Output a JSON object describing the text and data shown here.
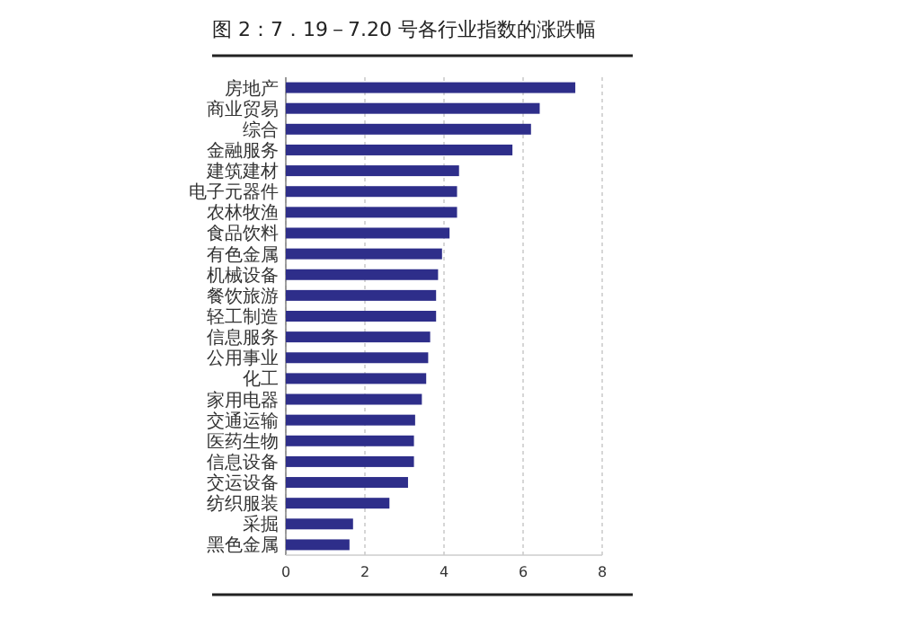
{
  "chart_data": {
    "type": "bar",
    "orientation": "horizontal",
    "title": "图 2：7．19－7.20 号各行业指数的涨跌幅",
    "categories": [
      "房地产",
      "商业贸易",
      "综合",
      "金融服务",
      "建筑建材",
      "电子元器件",
      "农林牧渔",
      "食品饮料",
      "有色金属",
      "机械设备",
      "餐饮旅游",
      "轻工制造",
      "信息服务",
      "公用事业",
      "化工",
      "家用电器",
      "交通运输",
      "医药生物",
      "信息设备",
      "交运设备",
      "纺织服装",
      "采掘",
      "黑色金属"
    ],
    "values": [
      7.32,
      6.42,
      6.2,
      5.73,
      4.38,
      4.33,
      4.33,
      4.14,
      3.95,
      3.85,
      3.8,
      3.8,
      3.65,
      3.6,
      3.55,
      3.44,
      3.27,
      3.24,
      3.24,
      3.09,
      2.62,
      1.7,
      1.61
    ],
    "color": "#2e2e8a",
    "xlim": [
      0,
      8
    ],
    "xticks": [
      0,
      2,
      4,
      6,
      8
    ],
    "grid": "x"
  }
}
